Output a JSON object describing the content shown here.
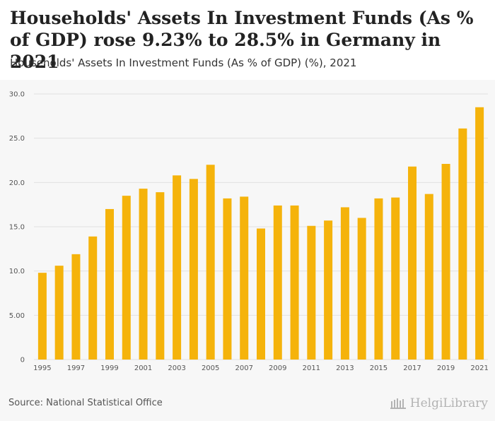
{
  "header": {
    "title": "Households' Assets In Investment Funds (As % of GDP) rose 9.23% to 28.5% in Germany in 2021",
    "subtitle": "Households' Assets In Investment Funds (As % of GDP) (%), 2021"
  },
  "footer": {
    "source": "Source: National Statistical Office",
    "logo_text": "HelgiLibrary"
  },
  "colors": {
    "bar": "#f5b30b",
    "background": "#f7f7f7"
  },
  "chart_data": {
    "type": "bar",
    "title": "Households' Assets In Investment Funds (As % of GDP) (%), 2021",
    "xlabel": "",
    "ylabel": "",
    "ylim": [
      0,
      30
    ],
    "yticks": [
      0,
      5,
      10,
      15,
      20,
      25,
      30
    ],
    "ytick_labels": [
      "0",
      "5.00",
      "10.0",
      "15.0",
      "20.0",
      "25.0",
      "30.0"
    ],
    "grid": true,
    "categories": [
      "1995",
      "1996",
      "1997",
      "1998",
      "1999",
      "2000",
      "2001",
      "2002",
      "2003",
      "2004",
      "2005",
      "2006",
      "2007",
      "2008",
      "2009",
      "2010",
      "2011",
      "2012",
      "2013",
      "2014",
      "2015",
      "2016",
      "2017",
      "2018",
      "2019",
      "2020",
      "2021"
    ],
    "xtick_labels": [
      "1995",
      "1997",
      "1999",
      "2001",
      "2003",
      "2005",
      "2007",
      "2009",
      "2011",
      "2013",
      "2015",
      "2017",
      "2019",
      "2021"
    ],
    "values": [
      9.8,
      10.6,
      11.9,
      13.9,
      17.0,
      18.5,
      19.3,
      18.9,
      20.8,
      20.4,
      22.0,
      18.2,
      18.4,
      14.8,
      17.4,
      17.4,
      15.1,
      15.7,
      17.2,
      16.0,
      18.2,
      18.3,
      21.8,
      18.7,
      22.1,
      26.1,
      28.5
    ]
  }
}
